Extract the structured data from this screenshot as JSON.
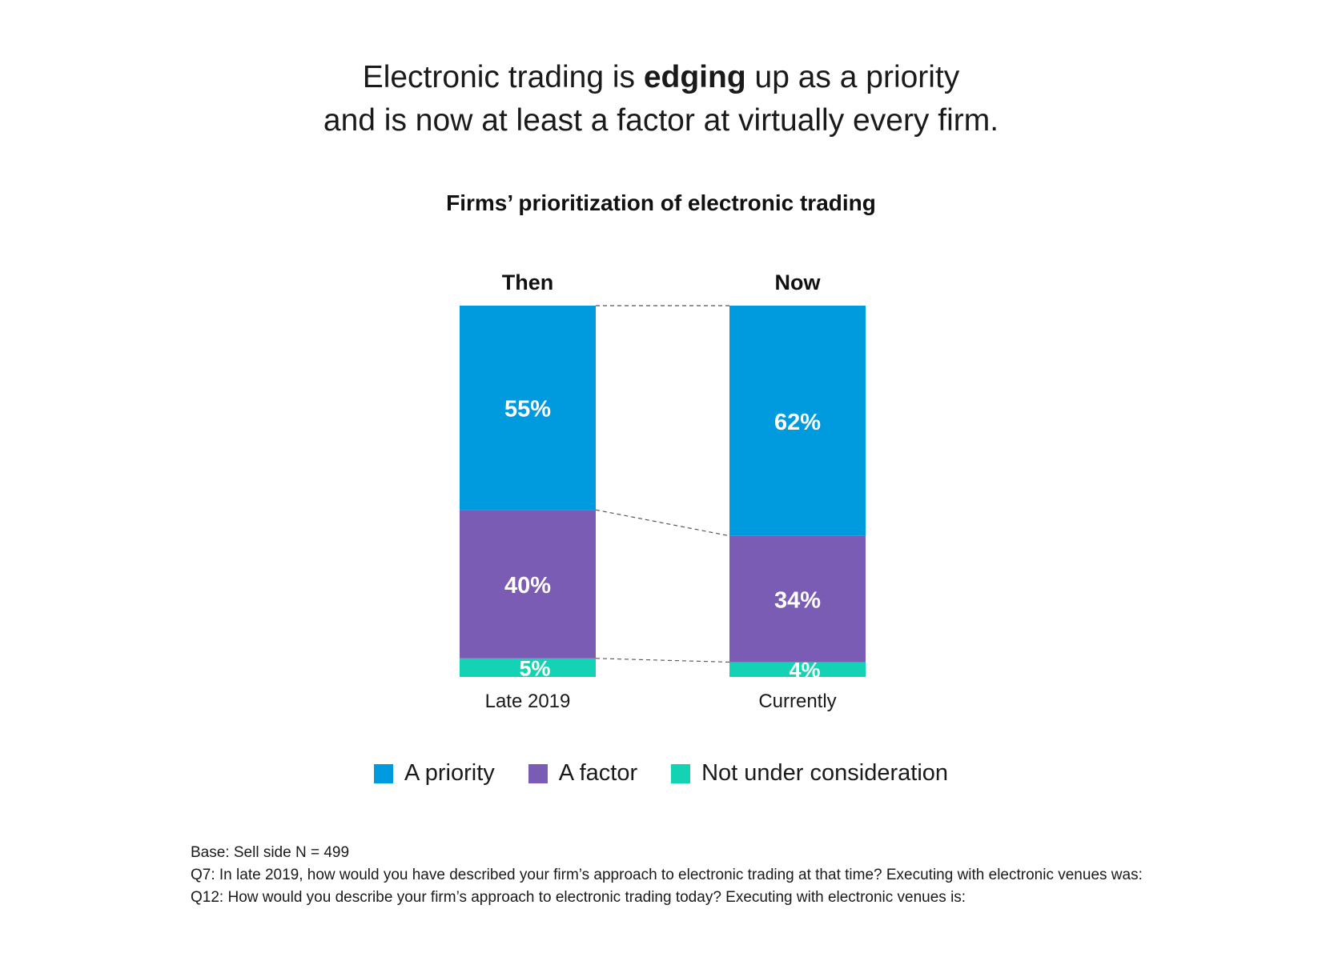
{
  "headline": {
    "line1_pre": "Electronic trading is ",
    "line1_bold": "edging",
    "line1_post": " up as a priority",
    "line2": "and is now at least a factor at virtually every firm."
  },
  "chart_data": {
    "type": "bar",
    "stacked": true,
    "title": "Firms’ prioritization of electronic trading",
    "categories": [
      "Late 2019",
      "Currently"
    ],
    "group_labels": [
      "Then",
      "Now"
    ],
    "series": [
      {
        "name": "A priority",
        "values": [
          55,
          62
        ],
        "labels": [
          "55%",
          "62%"
        ],
        "color": "#009ADE"
      },
      {
        "name": "A factor",
        "values": [
          40,
          34
        ],
        "labels": [
          "40%",
          "34%"
        ],
        "color": "#7B5CB5"
      },
      {
        "name": "Not under consideration",
        "values": [
          5,
          4
        ],
        "labels": [
          "5%",
          "4%"
        ],
        "color": "#13D3B4"
      }
    ],
    "ylim": [
      0,
      100
    ],
    "legend_position": "bottom",
    "grid": false,
    "connectors": "dashed"
  },
  "notes": [
    "Base: Sell side N = 499",
    "Q7: In late 2019, how would you have described your firm’s approach to electronic trading at that time? Executing with electronic venues was:",
    "Q12: How would you describe your firm’s approach to electronic trading today? Executing with electronic venues is:"
  ]
}
